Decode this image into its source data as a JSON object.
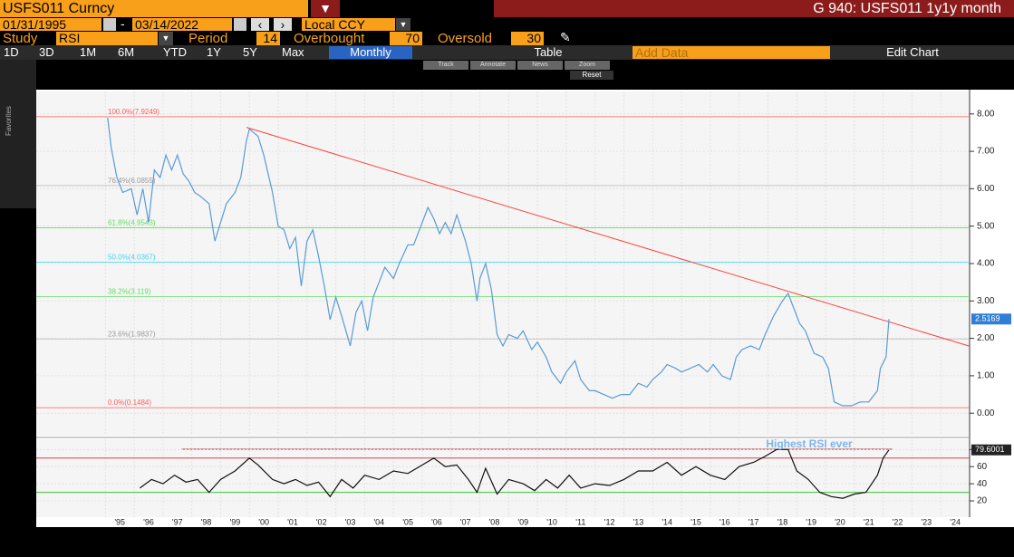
{
  "toolbar": {
    "security": "USFS011 Curncy",
    "function_title": "G 940: USFS011 1y1y month",
    "start_date": "01/31/1995",
    "end_date": "03/14/2022",
    "currency": "Local CCY",
    "study_label": "Study",
    "study": "RSI",
    "period_label": "Period",
    "overbought_label": "Overbought",
    "oversold_label": "Oversold",
    "ranges": [
      "1D",
      "3D",
      "1M",
      "6M",
      "YTD",
      "1Y",
      "5Y",
      "Max"
    ],
    "frequency": "Monthly",
    "table": "Table",
    "add_data": "Add Data",
    "edit_chart": "Edit Chart",
    "chart_tools": [
      "Track",
      "Annotate",
      "News",
      "Zoom"
    ],
    "reset": "Reset",
    "favorites": "Favorites"
  },
  "chart_data": [
    {
      "type": "line",
      "xlim": [
        1992.6,
        2025.0
      ],
      "ylim": [
        -0.6,
        8.6
      ],
      "yticks": [
        {
          "value": 0,
          "label": "0.00"
        },
        {
          "value": 1,
          "label": "1.00"
        },
        {
          "value": 2,
          "label": "2.00"
        },
        {
          "value": 3,
          "label": "3.00"
        },
        {
          "value": 4,
          "label": "4.00"
        },
        {
          "value": 5,
          "label": "5.00"
        },
        {
          "value": 6,
          "label": "6.00"
        },
        {
          "value": 7,
          "label": "7.00"
        },
        {
          "value": 8,
          "label": "8.00"
        }
      ],
      "x": [
        1995.08,
        1995.2,
        1995.4,
        1995.6,
        1995.9,
        1996.1,
        1996.3,
        1996.5,
        1996.7,
        1996.9,
        1997.1,
        1997.3,
        1997.5,
        1997.7,
        1997.9,
        1998.1,
        1998.3,
        1998.6,
        1998.8,
        1999.0,
        1999.2,
        1999.5,
        1999.7,
        1999.9,
        2000.0,
        2000.3,
        2000.5,
        2000.8,
        2001.0,
        2001.2,
        2001.4,
        2001.6,
        2001.8,
        2002.0,
        2002.2,
        2002.4,
        2002.6,
        2002.8,
        2003.0,
        2003.2,
        2003.5,
        2003.7,
        2003.9,
        2004.1,
        2004.3,
        2004.5,
        2004.7,
        2005.0,
        2005.2,
        2005.5,
        2005.7,
        2006.0,
        2006.2,
        2006.4,
        2006.6,
        2006.8,
        2007.0,
        2007.2,
        2007.5,
        2007.7,
        2007.9,
        2008.0,
        2008.2,
        2008.4,
        2008.6,
        2008.8,
        2009.0,
        2009.3,
        2009.5,
        2009.8,
        2010.0,
        2010.3,
        2010.5,
        2010.8,
        2011.0,
        2011.3,
        2011.5,
        2011.8,
        2012.0,
        2012.3,
        2012.6,
        2012.9,
        2013.2,
        2013.5,
        2013.8,
        2014.0,
        2014.3,
        2014.5,
        2014.8,
        2015.0,
        2015.3,
        2015.6,
        2015.9,
        2016.1,
        2016.4,
        2016.7,
        2016.9,
        2017.1,
        2017.4,
        2017.7,
        2017.9,
        2018.2,
        2018.5,
        2018.7,
        2018.9,
        2019.1,
        2019.3,
        2019.6,
        2019.9,
        2020.1,
        2020.3,
        2020.6,
        2020.9,
        2021.2,
        2021.5,
        2021.8,
        2021.9,
        2022.1,
        2022.2
      ],
      "series": [
        {
          "color": "#5b9bd5",
          "values": [
            7.9,
            7.1,
            6.3,
            5.9,
            6.0,
            5.3,
            6.0,
            5.1,
            6.5,
            6.3,
            6.9,
            6.5,
            6.9,
            6.4,
            6.2,
            5.9,
            5.8,
            5.6,
            4.6,
            5.1,
            5.6,
            5.9,
            6.3,
            7.3,
            7.6,
            7.4,
            6.9,
            5.9,
            5.0,
            4.9,
            4.4,
            4.7,
            3.4,
            4.6,
            4.9,
            4.2,
            3.4,
            2.5,
            3.1,
            2.6,
            1.8,
            2.7,
            3.0,
            2.2,
            3.1,
            3.5,
            3.9,
            3.6,
            4.0,
            4.5,
            4.5,
            5.1,
            5.5,
            5.2,
            4.8,
            5.1,
            4.8,
            5.3,
            4.6,
            4.0,
            3.0,
            3.6,
            4.0,
            3.3,
            2.1,
            1.8,
            2.1,
            2.0,
            2.2,
            1.7,
            1.9,
            1.5,
            1.1,
            0.8,
            1.1,
            1.4,
            0.9,
            0.6,
            0.6,
            0.5,
            0.4,
            0.5,
            0.5,
            0.8,
            0.7,
            0.9,
            1.1,
            1.3,
            1.2,
            1.1,
            1.2,
            1.3,
            1.1,
            1.3,
            1.0,
            0.9,
            1.5,
            1.7,
            1.8,
            1.7,
            2.1,
            2.6,
            3.0,
            3.2,
            2.8,
            2.4,
            2.2,
            1.6,
            1.5,
            1.2,
            0.3,
            0.2,
            0.2,
            0.3,
            0.3,
            0.6,
            1.2,
            1.5,
            2.5169
          ]
        }
      ],
      "levels": [
        {
          "label": "100.0%(7.9249)",
          "value": 7.9249,
          "color": "#ff5a5a"
        },
        {
          "label": "76.4%(6.0855)",
          "value": 6.0855,
          "color": "#b8b8b8"
        },
        {
          "label": "61.8%(4.9543)",
          "value": 4.9543,
          "color": "#5fe05f"
        },
        {
          "label": "50.0%(4.0367)",
          "value": 4.0367,
          "color": "#3fd4f0"
        },
        {
          "label": "38.2%(3.119)",
          "value": 3.119,
          "color": "#5fe05f"
        },
        {
          "label": "23.6%(1.9837)",
          "value": 1.9837,
          "color": "#b8b8b8"
        },
        {
          "label": "0.0%(0.1484)",
          "value": 0.1484,
          "color": "#ff5a5a"
        }
      ],
      "trendline": {
        "color": "#ff4040",
        "x": [
          1999.9,
          2025.0
        ],
        "values": [
          7.64,
          1.79
        ]
      }
    },
    {
      "type": "line",
      "xlim": [
        1992.6,
        2025.0
      ],
      "ylim": [
        1,
        92
      ],
      "yticks": [
        20,
        40,
        60,
        80
      ],
      "xticks": [
        {
          "value": 1995,
          "label": "'95"
        },
        {
          "value": 1996,
          "label": "'96"
        },
        {
          "value": 1997,
          "label": "'97"
        },
        {
          "value": 1998,
          "label": "'98"
        },
        {
          "value": 1999,
          "label": "'99"
        },
        {
          "value": 2000,
          "label": "'00"
        },
        {
          "value": 2001,
          "label": "'01"
        },
        {
          "value": 2002,
          "label": "'02"
        },
        {
          "value": 2003,
          "label": "'03"
        },
        {
          "value": 2004,
          "label": "'04"
        },
        {
          "value": 2005,
          "label": "'05"
        },
        {
          "value": 2006,
          "label": "'06"
        },
        {
          "value": 2007,
          "label": "'07"
        },
        {
          "value": 2008,
          "label": "'08"
        },
        {
          "value": 2009,
          "label": "'09"
        },
        {
          "value": 2010,
          "label": "'10"
        },
        {
          "value": 2011,
          "label": "'11"
        },
        {
          "value": 2012,
          "label": "'12"
        },
        {
          "value": 2013,
          "label": "'13"
        },
        {
          "value": 2014,
          "label": "'14"
        },
        {
          "value": 2015,
          "label": "'15"
        },
        {
          "value": 2016,
          "label": "'16"
        },
        {
          "value": 2017,
          "label": "'17"
        },
        {
          "value": 2018,
          "label": "'18"
        },
        {
          "value": 2019,
          "label": "'19"
        },
        {
          "value": 2020,
          "label": "'20"
        },
        {
          "value": 2021,
          "label": "'21"
        },
        {
          "value": 2022,
          "label": "'22"
        },
        {
          "value": 2023,
          "label": "'23"
        },
        {
          "value": 2024,
          "label": "'24"
        }
      ],
      "overbought": 70,
      "oversold": 30,
      "period": 14,
      "annotation": "Highest RSI ever",
      "x": [
        1996.2,
        1996.6,
        1997.0,
        1997.4,
        1997.8,
        1998.2,
        1998.6,
        1999.0,
        1999.5,
        2000.0,
        2000.3,
        2000.8,
        2001.2,
        2001.6,
        2002.0,
        2002.4,
        2002.8,
        2003.2,
        2003.6,
        2004.0,
        2004.5,
        2005.0,
        2005.5,
        2006.0,
        2006.4,
        2006.8,
        2007.2,
        2007.6,
        2007.9,
        2008.2,
        2008.6,
        2009.0,
        2009.5,
        2009.9,
        2010.3,
        2010.7,
        2011.1,
        2011.5,
        2012.0,
        2012.5,
        2013.0,
        2013.5,
        2014.0,
        2014.5,
        2015.0,
        2015.5,
        2016.0,
        2016.5,
        2017.0,
        2017.5,
        2017.9,
        2018.3,
        2018.7,
        2019.0,
        2019.4,
        2019.8,
        2020.2,
        2020.6,
        2021.0,
        2021.4,
        2021.8,
        2022.0,
        2022.2
      ],
      "series": [
        {
          "color": "#111111",
          "values": [
            35,
            45,
            40,
            50,
            42,
            45,
            30,
            45,
            55,
            70,
            62,
            45,
            40,
            45,
            38,
            42,
            25,
            45,
            35,
            50,
            45,
            55,
            52,
            62,
            70,
            60,
            62,
            45,
            30,
            58,
            28,
            45,
            40,
            32,
            45,
            35,
            50,
            35,
            40,
            38,
            45,
            55,
            55,
            65,
            50,
            60,
            50,
            45,
            60,
            65,
            72,
            80,
            80,
            55,
            45,
            30,
            25,
            23,
            28,
            30,
            50,
            70,
            79.6001
          ]
        }
      ]
    }
  ]
}
